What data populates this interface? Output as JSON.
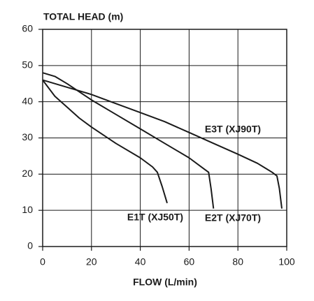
{
  "chart_data": {
    "type": "line",
    "title": "TOTAL HEAD (m)",
    "x_label": "FLOW (L/min)",
    "xlim": [
      0,
      100
    ],
    "xticks": [
      0,
      20,
      40,
      60,
      80,
      100
    ],
    "ylim": [
      0,
      60
    ],
    "yticks": [
      0,
      10,
      20,
      30,
      40,
      50,
      60
    ],
    "grid": true,
    "series": [
      {
        "name": "E1T (XJ50T)",
        "color": "#1a1a1a",
        "x": [
          0,
          5,
          10,
          15,
          20,
          30,
          40,
          45,
          47,
          49,
          51
        ],
        "values": [
          46,
          41.5,
          38.5,
          35.5,
          33,
          28.5,
          24.5,
          22,
          20.5,
          16.5,
          12
        ]
      },
      {
        "name": "E2T (XJ70T)",
        "color": "#1a1a1a",
        "x": [
          0,
          5,
          10,
          20,
          30,
          40,
          50,
          60,
          66,
          68,
          69,
          70
        ],
        "values": [
          48,
          47,
          45,
          40.5,
          36.5,
          32.5,
          28.5,
          24.5,
          21.5,
          20.5,
          16,
          10.5
        ]
      },
      {
        "name": "E3T (XJ90T)",
        "color": "#1a1a1a",
        "x": [
          0,
          10,
          20,
          30,
          40,
          50,
          60,
          70,
          80,
          88,
          94,
          96,
          97,
          98
        ],
        "values": [
          46,
          44,
          42,
          39.5,
          37,
          34.5,
          31.5,
          28.5,
          25.5,
          23,
          20.5,
          19.5,
          16,
          10.5
        ]
      }
    ]
  }
}
